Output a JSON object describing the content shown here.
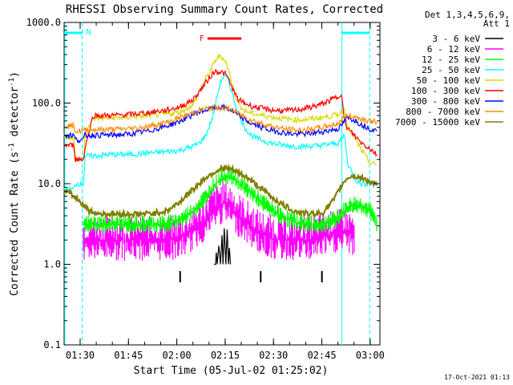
{
  "chart_data": {
    "type": "line",
    "title": "RHESSI Observing Summary Count Rates, Corrected",
    "xlabel": "Start Time (05-Jul-02 01:25:02)",
    "ylabel": "Corrected Count Rate (s-1 detector-1)",
    "ylabel_parts": {
      "main": "Corrected Count Rate (s",
      "sup1": "-1",
      "mid": " detector",
      "sup2": "-1",
      "end": ")"
    },
    "yscale": "log",
    "ylim": [
      0.1,
      1000
    ],
    "xlim_minutes": [
      0,
      98
    ],
    "x_ticks": [
      {
        "label": "01:30",
        "minute": 4.97
      },
      {
        "label": "01:45",
        "minute": 19.97
      },
      {
        "label": "02:00",
        "minute": 34.97
      },
      {
        "label": "02:15",
        "minute": 49.97
      },
      {
        "label": "02:30",
        "minute": 64.97
      },
      {
        "label": "02:45",
        "minute": 79.97
      },
      {
        "label": "03:00",
        "minute": 94.97
      }
    ],
    "y_ticks": [
      {
        "label": "1000.0",
        "value": 1000
      },
      {
        "label": "100.0",
        "value": 100
      },
      {
        "label": "10.0",
        "value": 10
      },
      {
        "label": "1.0",
        "value": 1
      },
      {
        "label": "0.1",
        "value": 0.1
      }
    ],
    "legend": {
      "header": [
        "Det 1,3,4,5,6,9,",
        "Att 1"
      ],
      "position": "right"
    },
    "series": [
      {
        "name": "3 - 6 keV",
        "color": "#000000",
        "x": [
          46.5,
          47.0,
          47.2,
          47.5,
          48.0,
          48.5,
          49.0,
          49.3,
          49.7,
          50.2,
          50.6,
          51.0,
          51.3,
          51.6
        ],
        "values": [
          1.0,
          1.0,
          1.4,
          1.0,
          1.7,
          1.0,
          2.3,
          1.0,
          2.8,
          1.0,
          2.7,
          1.0,
          1.6,
          1.0
        ]
      },
      {
        "name": "6 - 12 keV",
        "color": "#ff00ff",
        "x": [
          6,
          12,
          18,
          24,
          28,
          32,
          36,
          40,
          44,
          46,
          48,
          50,
          52,
          54,
          56,
          60,
          64,
          68,
          72,
          76,
          80,
          84,
          86,
          88,
          90
        ],
        "values": [
          2.0,
          2.0,
          2.0,
          2.0,
          2.0,
          2.0,
          2.1,
          2.6,
          3.6,
          4.6,
          5.4,
          5.7,
          5.0,
          4.0,
          3.4,
          2.5,
          2.1,
          2.0,
          2.0,
          2.0,
          2.2,
          2.4,
          2.5,
          2.5,
          2.2
        ]
      },
      {
        "name": "12 - 25 keV",
        "color": "#00ff00",
        "x": [
          6,
          12,
          18,
          24,
          28,
          32,
          36,
          40,
          44,
          46,
          48,
          50,
          52,
          54,
          56,
          60,
          64,
          68,
          72,
          76,
          80,
          84,
          86,
          88,
          90,
          93,
          95,
          97
        ],
        "values": [
          3.1,
          3.1,
          3.1,
          3.1,
          3.1,
          3.1,
          3.5,
          4.5,
          6.8,
          8.8,
          10.8,
          12.5,
          11.8,
          10.2,
          8.8,
          6.5,
          4.8,
          3.8,
          3.3,
          3.1,
          3.1,
          3.5,
          4.2,
          5.0,
          5.5,
          5.2,
          4.5,
          3.2
        ]
      },
      {
        "name": "25 - 50 keV",
        "color": "#00ffff",
        "x": [
          0,
          3,
          3.5,
          6,
          6.5,
          9,
          14,
          20,
          26,
          32,
          36,
          40,
          42,
          44,
          46,
          47,
          48,
          49,
          50,
          51,
          52,
          53,
          54,
          56,
          58,
          60,
          64,
          68,
          72,
          76,
          80,
          85,
          86,
          87,
          88,
          90,
          92,
          95,
          97
        ],
        "values": [
          8.5,
          8.5,
          10,
          10,
          22,
          22,
          23,
          23,
          24,
          25,
          26,
          29,
          32,
          40,
          65,
          100,
          150,
          205,
          215,
          190,
          140,
          100,
          75,
          50,
          40,
          36,
          32,
          30,
          29,
          29,
          30,
          32,
          35,
          40,
          18,
          12,
          10,
          10,
          10
        ]
      },
      {
        "name": "50 - 100 keV",
        "color": "#d8d800",
        "x": [
          0,
          3,
          3.5,
          6,
          6.5,
          9,
          14,
          20,
          26,
          32,
          36,
          40,
          42,
          44,
          46,
          47,
          48,
          49,
          50,
          51,
          52,
          53,
          54,
          56,
          58,
          60,
          64,
          68,
          72,
          76,
          80,
          85,
          86,
          87,
          88,
          90,
          92,
          95,
          97
        ],
        "values": [
          38,
          38,
          20,
          20,
          40,
          65,
          65,
          67,
          70,
          73,
          78,
          95,
          140,
          200,
          280,
          340,
          380,
          370,
          340,
          260,
          180,
          130,
          100,
          80,
          75,
          72,
          68,
          64,
          62,
          63,
          66,
          72,
          78,
          85,
          50,
          38,
          27,
          18,
          17
        ]
      },
      {
        "name": "100 - 300 keV",
        "color": "#ff0000",
        "x": [
          0,
          3,
          3.5,
          6,
          6.5,
          9,
          14,
          20,
          26,
          32,
          36,
          40,
          42,
          44,
          46,
          47,
          48,
          49,
          50,
          51,
          52,
          53,
          54,
          56,
          58,
          60,
          64,
          68,
          72,
          76,
          80,
          85,
          86,
          87,
          88,
          90,
          92,
          95,
          97
        ],
        "values": [
          30,
          30,
          20,
          20,
          28,
          70,
          70,
          72,
          76,
          82,
          90,
          110,
          140,
          180,
          230,
          250,
          245,
          240,
          230,
          200,
          160,
          130,
          110,
          100,
          92,
          88,
          82,
          80,
          82,
          88,
          97,
          120,
          135,
          60,
          48,
          40,
          33,
          27,
          23
        ]
      },
      {
        "name": "300 - 800 keV",
        "color": "#0000ff",
        "x": [
          0,
          3,
          3.5,
          6,
          6.5,
          9,
          14,
          20,
          26,
          32,
          36,
          40,
          42,
          44,
          46,
          47,
          48,
          49,
          50,
          51,
          52,
          53,
          54,
          56,
          58,
          60,
          64,
          68,
          72,
          76,
          80,
          85,
          86,
          87,
          88,
          90,
          92,
          95,
          97
        ],
        "values": [
          40,
          40,
          35,
          35,
          40,
          40,
          40,
          41,
          45,
          52,
          60,
          72,
          78,
          82,
          86,
          88,
          89,
          88,
          87,
          84,
          80,
          75,
          70,
          62,
          56,
          52,
          46,
          43,
          41,
          42,
          44,
          48,
          52,
          60,
          65,
          62,
          55,
          48,
          45
        ]
      },
      {
        "name": "800 - 7000 keV",
        "color": "#ff8c00",
        "x": [
          0,
          3,
          3.5,
          6,
          6.5,
          9,
          14,
          20,
          26,
          32,
          36,
          40,
          42,
          44,
          46,
          47,
          48,
          49,
          50,
          51,
          52,
          53,
          54,
          56,
          58,
          60,
          64,
          68,
          72,
          76,
          80,
          85,
          86,
          87,
          88,
          90,
          92,
          95,
          97
        ],
        "values": [
          52,
          52,
          45,
          45,
          47,
          47,
          47,
          48,
          51,
          58,
          66,
          76,
          81,
          85,
          87,
          88,
          88,
          88,
          87,
          85,
          82,
          78,
          74,
          68,
          62,
          58,
          52,
          48,
          46,
          47,
          50,
          56,
          62,
          68,
          70,
          68,
          64,
          60,
          58
        ]
      },
      {
        "name": "7000 - 15000 keV",
        "color": "#808000",
        "x": [
          0,
          2,
          4,
          6,
          8,
          12,
          18,
          24,
          28,
          32,
          36,
          40,
          44,
          48,
          50,
          52,
          56,
          60,
          64,
          68,
          72,
          76,
          80,
          84,
          86,
          88,
          90,
          93,
          95,
          97
        ],
        "values": [
          8,
          7.5,
          6.5,
          5.5,
          4.5,
          4.2,
          4.2,
          4.2,
          4.3,
          4.6,
          6,
          8.5,
          12,
          15,
          15.5,
          15,
          12.5,
          9.5,
          7,
          5.4,
          4.5,
          4.2,
          4.3,
          6.5,
          9.5,
          12,
          12.5,
          11.5,
          10.5,
          9.5
        ]
      }
    ],
    "annotations": [
      {
        "label": "N",
        "kind": "night",
        "intervals": [
          [
            0,
            5.8
          ],
          [
            86.2,
            94.8
          ]
        ],
        "color": "#00ffff"
      },
      {
        "label": "F",
        "kind": "flare",
        "intervals": [
          [
            44.5,
            55
          ]
        ],
        "color": "#ff0000"
      }
    ],
    "event_ticks_minutes": [
      36,
      61,
      80
    ],
    "boundary_lines_minutes": [
      0.2,
      5.6,
      86.2,
      94.8
    ],
    "timestamp": "17-Oct-2021 01:13"
  }
}
